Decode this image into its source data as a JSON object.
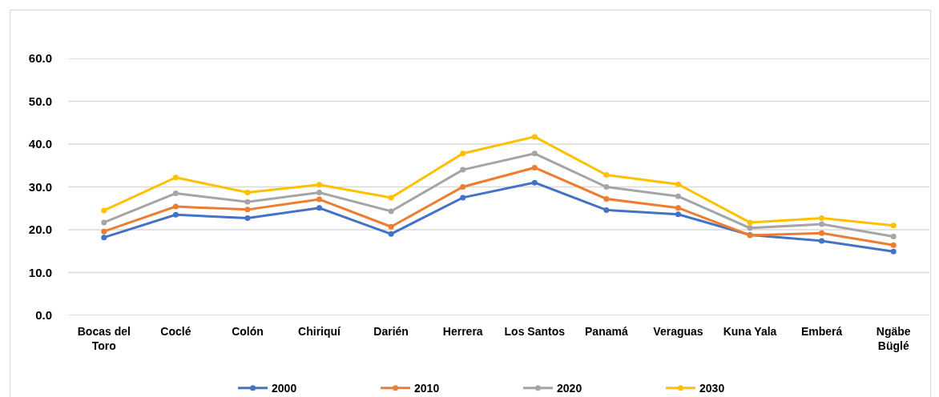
{
  "chart_data": {
    "type": "line",
    "categories": [
      "Bocas del Toro",
      "Coclé",
      "Colón",
      "Chiriquí",
      "Darién",
      "Herrera",
      "Los Santos",
      "Panamá",
      "Veraguas",
      "Kuna Yala",
      "Emberá",
      "Ngäbe Büglé"
    ],
    "series": [
      {
        "name": "2000",
        "color": "#4472c4",
        "values": [
          18.2,
          23.5,
          22.7,
          25.1,
          19.0,
          27.5,
          31.0,
          24.6,
          23.6,
          18.8,
          17.4,
          14.9
        ]
      },
      {
        "name": "2010",
        "color": "#ed7d31",
        "values": [
          19.6,
          25.4,
          24.7,
          27.1,
          20.7,
          30.0,
          34.5,
          27.2,
          25.1,
          18.7,
          19.2,
          16.4
        ]
      },
      {
        "name": "2020",
        "color": "#a5a5a5",
        "values": [
          21.7,
          28.5,
          26.5,
          28.7,
          24.3,
          34.0,
          37.8,
          30.0,
          27.8,
          20.4,
          21.3,
          18.4
        ]
      },
      {
        "name": "2030",
        "color": "#ffc000",
        "values": [
          24.5,
          32.2,
          28.7,
          30.5,
          27.5,
          37.8,
          41.7,
          32.8,
          30.6,
          21.7,
          22.7,
          21.0
        ]
      }
    ],
    "ylim": [
      0,
      60
    ],
    "yticks": [
      {
        "value": 0,
        "label": "0.0"
      },
      {
        "value": 10,
        "label": "10.0"
      },
      {
        "value": 20,
        "label": "20.0"
      },
      {
        "value": 30,
        "label": "30.0"
      },
      {
        "value": 40,
        "label": "40.0"
      },
      {
        "value": 50,
        "label": "50.0"
      },
      {
        "value": 60,
        "label": "60.0"
      }
    ],
    "grid": "y",
    "legend": "bottom",
    "marker": "circle",
    "line_style": "solid"
  }
}
